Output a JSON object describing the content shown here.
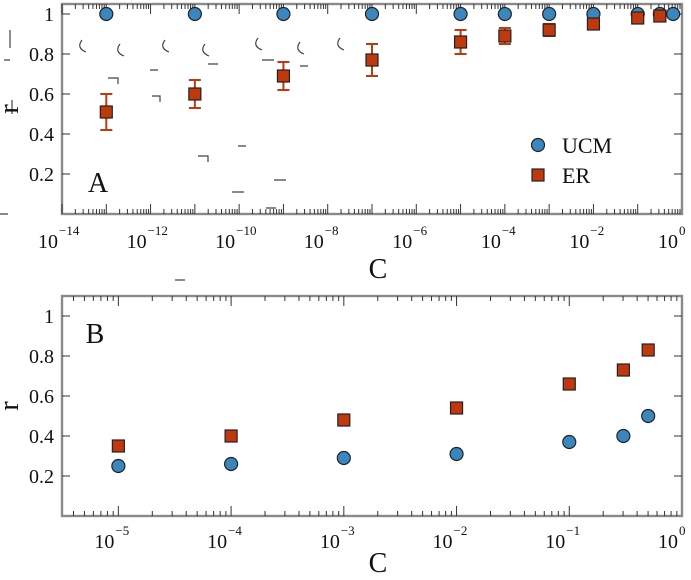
{
  "chart_data": [
    {
      "panel": "A",
      "type": "scatter",
      "xscale": "log",
      "xlim_exp": [
        -14,
        0
      ],
      "ylim": [
        0,
        1.05
      ],
      "x_tick_exponents": [
        -14,
        -12,
        -10,
        -8,
        -6,
        -4,
        -2,
        0
      ],
      "x_tick_base": "10",
      "y_ticks": [
        "0.2",
        "0.4",
        "0.6",
        "0.8",
        "1"
      ],
      "xlabel": "C",
      "ylabel": "r",
      "legend": {
        "placement": "lower-right"
      },
      "series": [
        {
          "name": "UCM",
          "marker": "circle",
          "color": "#3a87c0",
          "x_exp": [
            -13,
            -11,
            -9,
            -7,
            -5,
            -4,
            -3,
            -2,
            -1,
            -0.5,
            -0.2
          ],
          "y": [
            1,
            1,
            1,
            1,
            1,
            1,
            1,
            1,
            1,
            1,
            1
          ]
        },
        {
          "name": "ER",
          "marker": "square",
          "color": "#c0380e",
          "x_exp": [
            -13,
            -11,
            -9,
            -7,
            -5,
            -4,
            -3,
            -2,
            -1,
            -0.5
          ],
          "y": [
            0.51,
            0.6,
            0.69,
            0.77,
            0.86,
            0.89,
            0.92,
            0.95,
            0.98,
            0.99
          ],
          "err": [
            0.09,
            0.07,
            0.07,
            0.08,
            0.06,
            0.04,
            0.03,
            0.02,
            0.01,
            0.01
          ]
        }
      ]
    },
    {
      "panel": "B",
      "type": "scatter",
      "xscale": "log",
      "xlim_exp": [
        -5.5,
        0
      ],
      "ylim": [
        0,
        1.1
      ],
      "x_tick_exponents": [
        -5,
        -4,
        -3,
        -2,
        -1,
        0
      ],
      "x_tick_base": "10",
      "y_ticks": [
        "0.2",
        "0.4",
        "0.6",
        "0.8",
        "1"
      ],
      "xlabel": "C",
      "ylabel": "r",
      "series": [
        {
          "name": "UCM",
          "marker": "circle",
          "color": "#3a87c0",
          "x_exp": [
            -5,
            -4,
            -3,
            -2,
            -1,
            -0.52,
            -0.3
          ],
          "y": [
            0.25,
            0.26,
            0.29,
            0.31,
            0.37,
            0.4,
            0.5
          ]
        },
        {
          "name": "ER",
          "marker": "square",
          "color": "#c0380e",
          "x_exp": [
            -5,
            -4,
            -3,
            -2,
            -1,
            -0.52,
            -0.3
          ],
          "y": [
            0.35,
            0.4,
            0.48,
            0.54,
            0.66,
            0.73,
            0.83
          ]
        }
      ]
    }
  ]
}
